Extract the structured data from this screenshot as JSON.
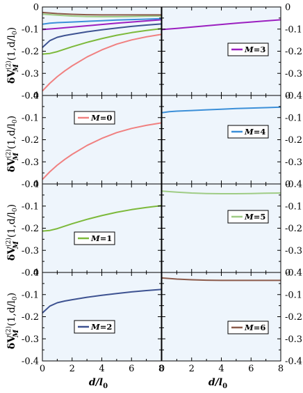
{
  "chart_data": {
    "type": "line",
    "ylabel_parts": {
      "delta": "δ",
      "v": "V",
      "sup": "(2)",
      "sub": "M",
      "args": "(1,d/l",
      "args_sub": "0",
      "close": ")"
    },
    "xlabel_parts": {
      "d": "d/l",
      "sub": "0"
    },
    "xlim": [
      0,
      8
    ],
    "ylim": [
      -0.4,
      0
    ],
    "xticks": [
      "0",
      "2",
      "4",
      "6",
      "8"
    ],
    "yticks": [
      "0",
      "-0.1",
      "-0.2",
      "-0.3",
      "-0.4"
    ],
    "series": [
      {
        "name": "M=0",
        "label_prefix": "M",
        "label_value": "=0",
        "color": "#f08080",
        "x": [
          0,
          0.5,
          1,
          1.5,
          2,
          3,
          4,
          5,
          6,
          7,
          8
        ],
        "y": [
          -0.38,
          -0.345,
          -0.315,
          -0.289,
          -0.266,
          -0.226,
          -0.194,
          -0.168,
          -0.149,
          -0.135,
          -0.124
        ]
      },
      {
        "name": "M=1",
        "label_prefix": "M",
        "label_value": "=1",
        "color": "#7cb93a",
        "x": [
          0,
          0.5,
          1,
          1.5,
          2,
          3,
          4,
          5,
          6,
          7,
          8
        ],
        "y": [
          -0.213,
          -0.21,
          -0.202,
          -0.191,
          -0.18,
          -0.16,
          -0.143,
          -0.128,
          -0.116,
          -0.106,
          -0.098
        ]
      },
      {
        "name": "M=2",
        "label_prefix": "M",
        "label_value": "=2",
        "color": "#3d5291",
        "x": [
          0,
          0.5,
          1,
          1.5,
          2,
          3,
          4,
          5,
          6,
          7,
          8
        ],
        "y": [
          -0.183,
          -0.152,
          -0.137,
          -0.129,
          -0.123,
          -0.112,
          -0.103,
          -0.095,
          -0.088,
          -0.082,
          -0.077
        ]
      },
      {
        "name": "M=3",
        "label_prefix": "M",
        "label_value": "=3",
        "color": "#9b1fc0",
        "x": [
          0,
          1,
          2,
          3,
          4,
          5,
          6,
          7,
          8
        ],
        "y": [
          -0.102,
          -0.097,
          -0.091,
          -0.085,
          -0.079,
          -0.073,
          -0.068,
          -0.063,
          -0.058
        ]
      },
      {
        "name": "M=4",
        "label_prefix": "M",
        "label_value": "=4",
        "color": "#3b8fd8",
        "x": [
          0,
          0.5,
          1,
          2,
          3,
          4,
          5,
          6,
          7,
          8
        ],
        "y": [
          -0.078,
          -0.073,
          -0.071,
          -0.068,
          -0.065,
          -0.062,
          -0.059,
          -0.057,
          -0.055,
          -0.053
        ]
      },
      {
        "name": "M=5",
        "label_prefix": "M",
        "label_value": "=5",
        "color": "#9fcc85",
        "x": [
          0,
          1,
          2,
          3,
          4,
          5,
          6,
          7,
          8
        ],
        "y": [
          -0.032,
          -0.037,
          -0.041,
          -0.043,
          -0.044,
          -0.044,
          -0.043,
          -0.042,
          -0.041
        ]
      },
      {
        "name": "M=6",
        "label_prefix": "M",
        "label_value": "=6",
        "color": "#8b5a4a",
        "x": [
          0,
          1,
          2,
          3,
          4,
          5,
          6,
          7,
          8
        ],
        "y": [
          -0.025,
          -0.03,
          -0.033,
          -0.035,
          -0.036,
          -0.036,
          -0.036,
          -0.036,
          -0.036
        ]
      }
    ],
    "panels": [
      {
        "id": "all",
        "series": [
          0,
          1,
          2,
          3,
          4,
          5,
          6
        ],
        "legend": null
      },
      {
        "id": "m3",
        "series": [
          3
        ],
        "legend": 3
      },
      {
        "id": "m0",
        "series": [
          0
        ],
        "legend": 0
      },
      {
        "id": "m4",
        "series": [
          4
        ],
        "legend": 4
      },
      {
        "id": "m1",
        "series": [
          1
        ],
        "legend": 1
      },
      {
        "id": "m5",
        "series": [
          5
        ],
        "legend": 5
      },
      {
        "id": "m2",
        "series": [
          2
        ],
        "legend": 2
      },
      {
        "id": "m6",
        "series": [
          6
        ],
        "legend": 6
      }
    ],
    "panel_background": "#eef5fc",
    "zero_line_style": "dashed",
    "grid": false
  }
}
